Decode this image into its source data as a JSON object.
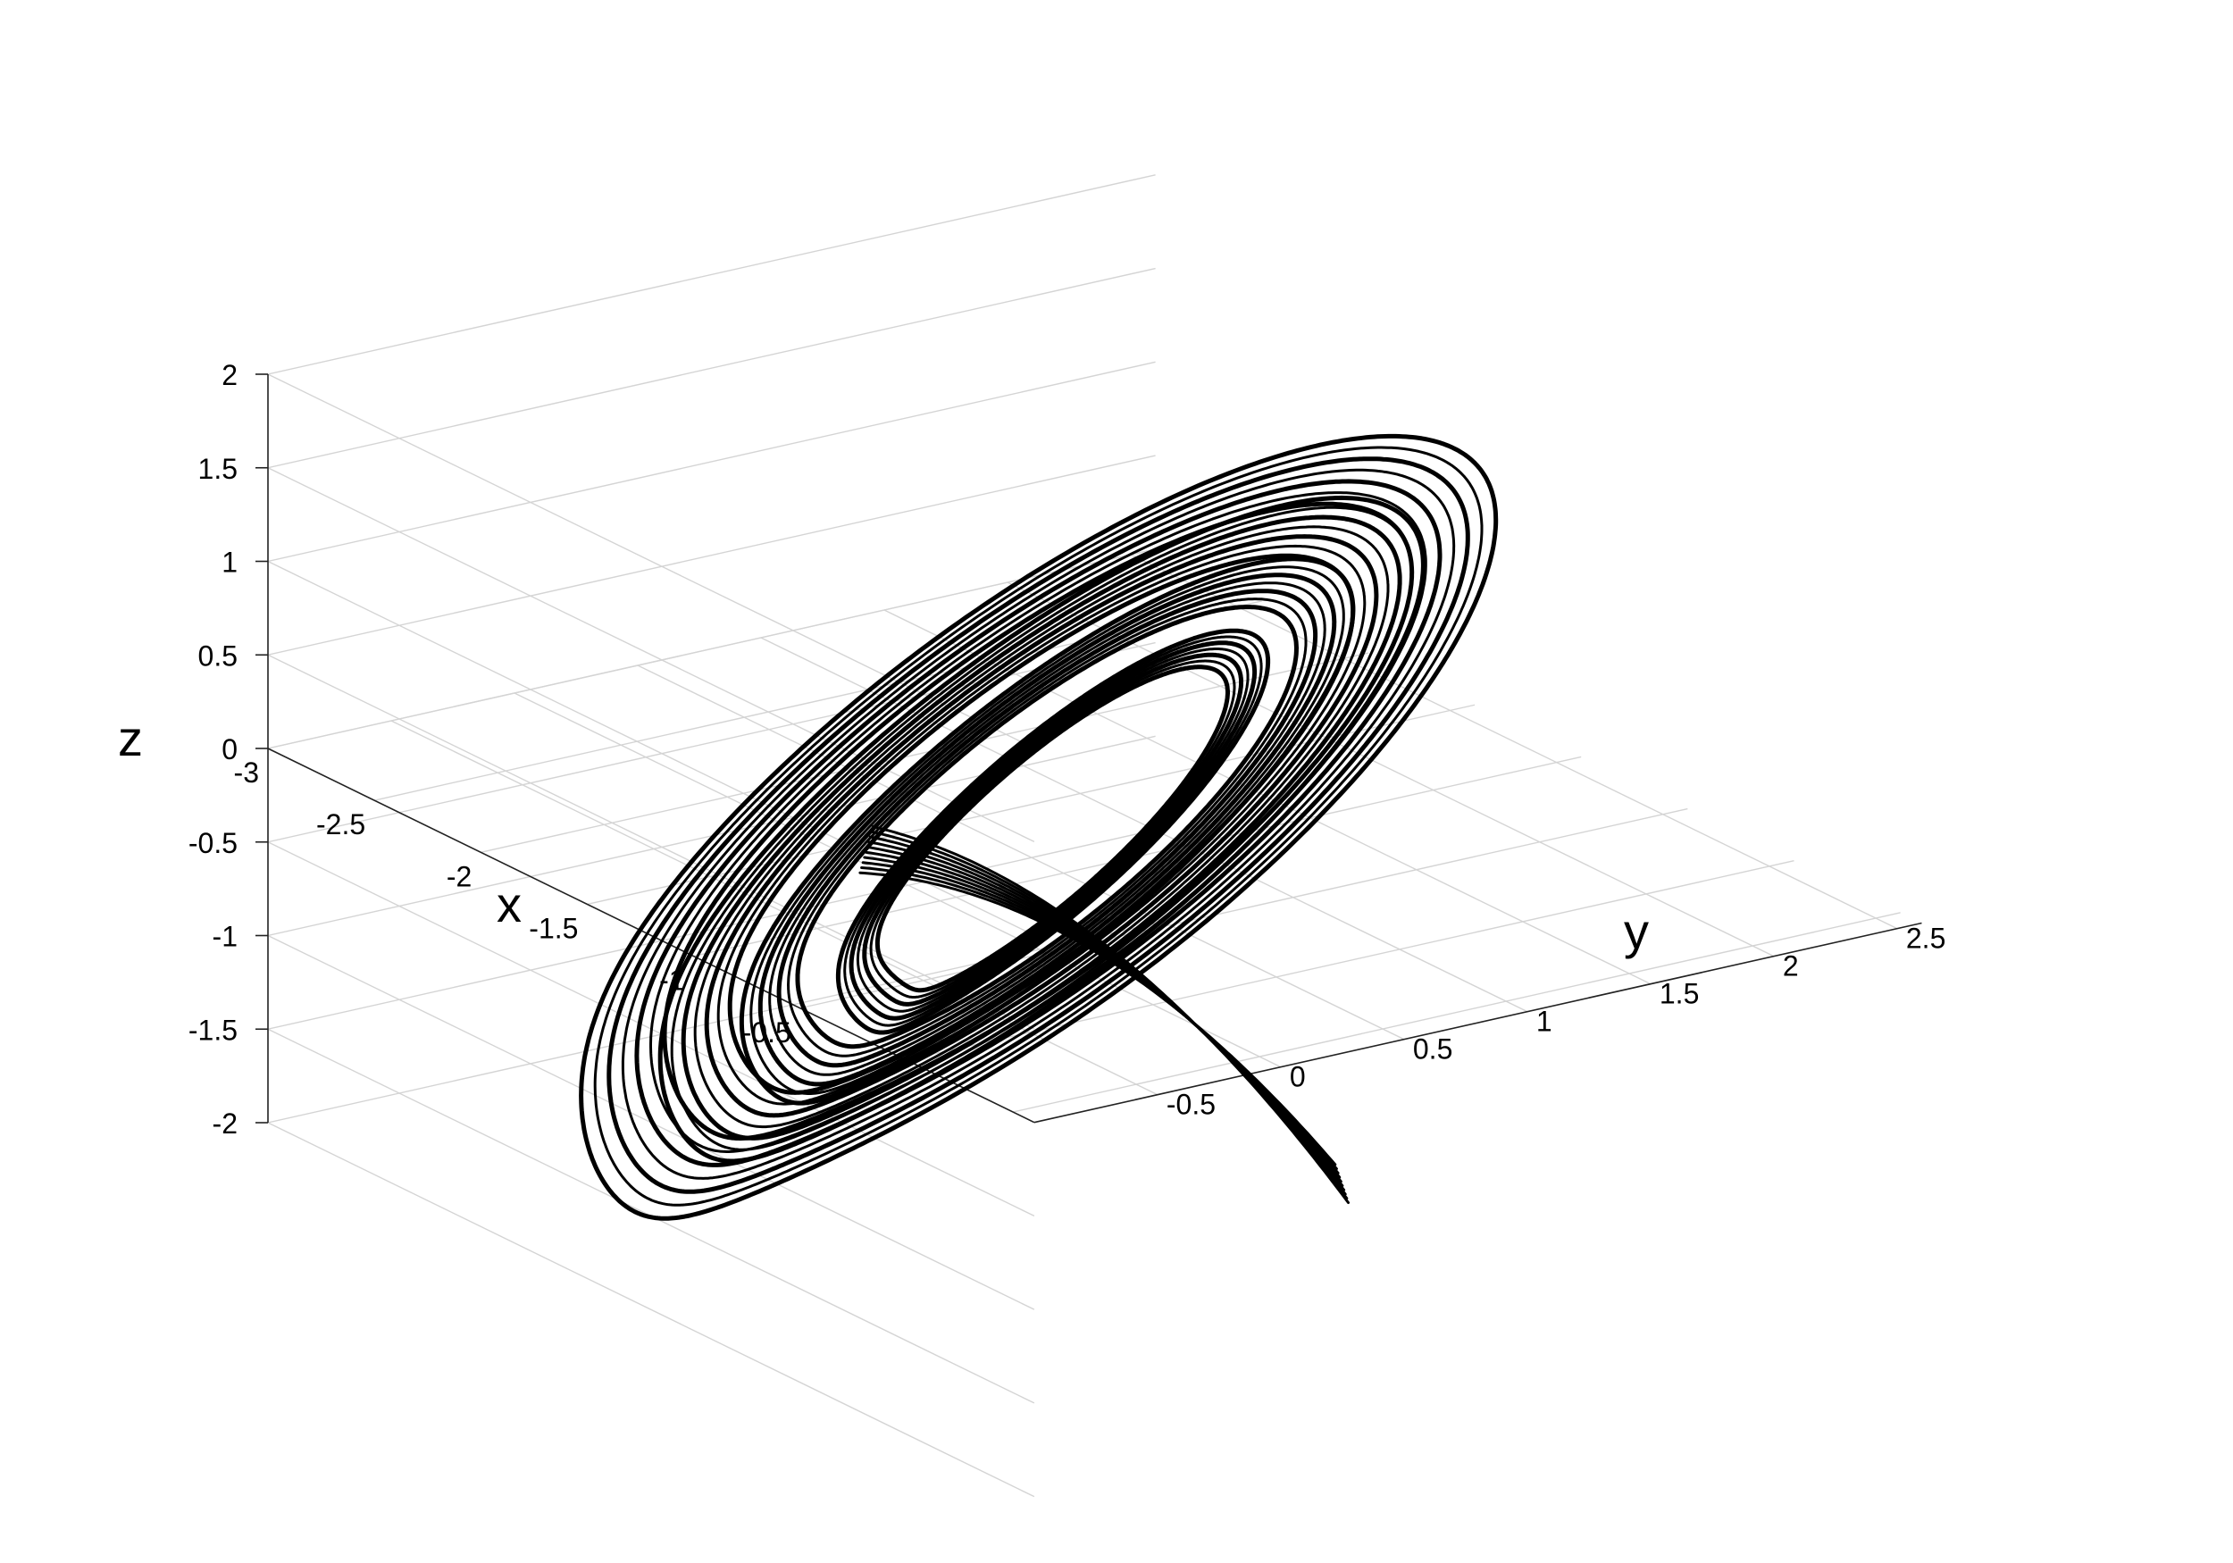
{
  "chart_data": {
    "type": "line3d",
    "title": "",
    "xlabel": "x",
    "ylabel": "y",
    "zlabel": "z",
    "x_ticks": [
      "-3",
      "-2.5",
      "-2",
      "-1.5",
      "-1",
      "-0.5"
    ],
    "y_ticks": [
      "-0.5",
      "0",
      "0.5",
      "1",
      "1.5",
      "2",
      "2.5"
    ],
    "z_ticks": [
      "2",
      "1.5",
      "1",
      "0.5",
      "0",
      "-0.5",
      "-1",
      "-1.5",
      "-2"
    ],
    "xlim": [
      -3,
      0
    ],
    "ylim": [
      -1,
      2.5
    ],
    "zlim": [
      -2,
      2
    ],
    "grid": true,
    "line_color": "#000000",
    "series": [
      {
        "description_free": true,
        "loops": [
          {
            "x_center": -1.45,
            "y_center": 0.75,
            "radius_x": 1.45,
            "radius_y": 1.6,
            "z_amplitude": 1.75
          },
          {
            "x_center": -1.4,
            "y_center": 0.72,
            "radius_x": 1.2,
            "radius_y": 1.35,
            "z_amplitude": 1.5
          },
          {
            "x_center": -1.35,
            "y_center": 0.7,
            "radius_x": 0.95,
            "radius_y": 1.1,
            "z_amplitude": 1.25
          },
          {
            "x_center": -1.3,
            "y_center": 0.68,
            "radius_x": 0.65,
            "radius_y": 0.8,
            "z_amplitude": 0.95
          }
        ]
      }
    ]
  }
}
